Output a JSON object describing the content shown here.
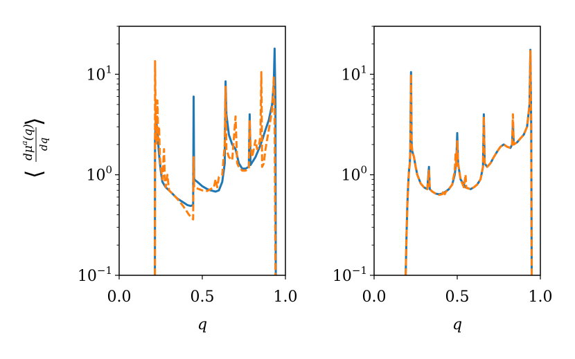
{
  "figure": {
    "ylabel_parts": {
      "mu": "dμ",
      "sup": "a",
      "arg": "(q)",
      "den": "dq"
    }
  },
  "colors": {
    "series1": "#1f77b4",
    "series2": "#ff7f0e"
  },
  "chart_data": [
    {
      "type": "line",
      "xlabel": "q",
      "ylabel": "⟨dμ^a(q)/dq⟩",
      "xlim": [
        0.0,
        1.0
      ],
      "ylim": [
        0.1,
        30
      ],
      "yscale": "log",
      "x_ticks": [
        "0.0",
        "0.5",
        "1.0"
      ],
      "y_ticks": [
        {
          "base": "10",
          "exp": "−1"
        },
        {
          "base": "10",
          "exp": "0"
        },
        {
          "base": "10",
          "exp": "1"
        }
      ],
      "series": [
        {
          "style": "solid",
          "color": "#1f77b4",
          "points": [
            [
              0.215,
              0.1
            ],
            [
              0.216,
              2.2
            ],
            [
              0.22,
              3.5
            ],
            [
              0.225,
              3.2
            ],
            [
              0.23,
              2.6
            ],
            [
              0.24,
              1.6
            ],
            [
              0.25,
              1.1
            ],
            [
              0.26,
              0.85
            ],
            [
              0.28,
              0.75
            ],
            [
              0.3,
              0.7
            ],
            [
              0.32,
              0.65
            ],
            [
              0.35,
              0.58
            ],
            [
              0.38,
              0.54
            ],
            [
              0.41,
              0.5
            ],
            [
              0.43,
              0.49
            ],
            [
              0.445,
              0.5
            ],
            [
              0.448,
              6.0
            ],
            [
              0.451,
              0.9
            ],
            [
              0.47,
              0.85
            ],
            [
              0.5,
              0.77
            ],
            [
              0.53,
              0.72
            ],
            [
              0.55,
              0.7
            ],
            [
              0.58,
              0.68
            ],
            [
              0.6,
              0.7
            ],
            [
              0.62,
              0.85
            ],
            [
              0.635,
              1.3
            ],
            [
              0.64,
              8.5
            ],
            [
              0.645,
              4.0
            ],
            [
              0.66,
              2.5
            ],
            [
              0.68,
              2.0
            ],
            [
              0.7,
              1.8
            ],
            [
              0.72,
              1.3
            ],
            [
              0.74,
              1.15
            ],
            [
              0.76,
              1.15
            ],
            [
              0.78,
              1.2
            ],
            [
              0.785,
              4.0
            ],
            [
              0.79,
              1.25
            ],
            [
              0.82,
              1.5
            ],
            [
              0.84,
              1.8
            ],
            [
              0.86,
              2.2
            ],
            [
              0.88,
              2.8
            ],
            [
              0.9,
              3.5
            ],
            [
              0.92,
              5.0
            ],
            [
              0.93,
              8.0
            ],
            [
              0.935,
              18.0
            ],
            [
              0.94,
              5.0
            ],
            [
              0.942,
              0.1
            ]
          ]
        },
        {
          "style": "dashed",
          "color": "#ff7f0e",
          "points": [
            [
              0.215,
              0.1
            ],
            [
              0.216,
              13.5
            ],
            [
              0.22,
              3.0
            ],
            [
              0.225,
              2.0
            ],
            [
              0.23,
              5.5
            ],
            [
              0.235,
              2.2
            ],
            [
              0.24,
              3.0
            ],
            [
              0.245,
              1.5
            ],
            [
              0.25,
              1.2
            ],
            [
              0.26,
              0.9
            ],
            [
              0.27,
              1.8
            ],
            [
              0.275,
              0.85
            ],
            [
              0.28,
              0.75
            ],
            [
              0.29,
              1.0
            ],
            [
              0.3,
              0.7
            ],
            [
              0.32,
              0.65
            ],
            [
              0.34,
              0.6
            ],
            [
              0.36,
              0.55
            ],
            [
              0.38,
              0.5
            ],
            [
              0.4,
              0.45
            ],
            [
              0.42,
              0.4
            ],
            [
              0.44,
              0.37
            ],
            [
              0.445,
              0.36
            ],
            [
              0.448,
              1.5
            ],
            [
              0.451,
              0.75
            ],
            [
              0.47,
              0.73
            ],
            [
              0.5,
              0.7
            ],
            [
              0.53,
              0.69
            ],
            [
              0.55,
              0.72
            ],
            [
              0.57,
              0.75
            ],
            [
              0.58,
              0.9
            ],
            [
              0.59,
              0.75
            ],
            [
              0.6,
              0.95
            ],
            [
              0.62,
              1.0
            ],
            [
              0.635,
              2.0
            ],
            [
              0.64,
              7.5
            ],
            [
              0.645,
              1.8
            ],
            [
              0.66,
              1.5
            ],
            [
              0.68,
              1.4
            ],
            [
              0.7,
              3.8
            ],
            [
              0.71,
              1.3
            ],
            [
              0.72,
              1.2
            ],
            [
              0.74,
              1.1
            ],
            [
              0.76,
              1.1
            ],
            [
              0.78,
              1.15
            ],
            [
              0.785,
              3.5
            ],
            [
              0.79,
              2.0
            ],
            [
              0.8,
              1.5
            ],
            [
              0.82,
              2.2
            ],
            [
              0.83,
              1.8
            ],
            [
              0.84,
              1.9
            ],
            [
              0.85,
              2.5
            ],
            [
              0.855,
              10.5
            ],
            [
              0.86,
              1.2
            ],
            [
              0.87,
              1.3
            ],
            [
              0.88,
              1.8
            ],
            [
              0.9,
              2.8
            ],
            [
              0.91,
              3.5
            ],
            [
              0.92,
              4.5
            ],
            [
              0.925,
              6.0
            ],
            [
              0.93,
              9.5
            ],
            [
              0.935,
              4.0
            ],
            [
              0.94,
              0.1
            ]
          ]
        }
      ]
    },
    {
      "type": "line",
      "xlabel": "q",
      "ylabel": "",
      "xlim": [
        0.0,
        1.0
      ],
      "ylim": [
        0.1,
        30
      ],
      "yscale": "log",
      "x_ticks": [
        "0.0",
        "0.5",
        "1.0"
      ],
      "y_ticks": [
        {
          "base": "10",
          "exp": "−1"
        },
        {
          "base": "10",
          "exp": "0"
        },
        {
          "base": "10",
          "exp": "1"
        }
      ],
      "series": [
        {
          "style": "solid",
          "color": "#1f77b4",
          "points": [
            [
              0.19,
              0.1
            ],
            [
              0.195,
              0.25
            ],
            [
              0.2,
              0.5
            ],
            [
              0.205,
              0.8
            ],
            [
              0.21,
              1.1
            ],
            [
              0.215,
              1.3
            ],
            [
              0.218,
              1.8
            ],
            [
              0.222,
              10.5
            ],
            [
              0.226,
              2.0
            ],
            [
              0.23,
              1.7
            ],
            [
              0.24,
              1.5
            ],
            [
              0.25,
              1.2
            ],
            [
              0.26,
              1.0
            ],
            [
              0.28,
              0.82
            ],
            [
              0.3,
              0.75
            ],
            [
              0.32,
              0.72
            ],
            [
              0.33,
              1.2
            ],
            [
              0.335,
              0.72
            ],
            [
              0.35,
              0.68
            ],
            [
              0.37,
              0.65
            ],
            [
              0.39,
              0.64
            ],
            [
              0.41,
              0.65
            ],
            [
              0.43,
              0.68
            ],
            [
              0.45,
              0.72
            ],
            [
              0.47,
              0.8
            ],
            [
              0.485,
              1.0
            ],
            [
              0.495,
              1.4
            ],
            [
              0.5,
              2.6
            ],
            [
              0.505,
              1.3
            ],
            [
              0.52,
              0.9
            ],
            [
              0.55,
              0.75
            ],
            [
              0.58,
              0.72
            ],
            [
              0.6,
              0.75
            ],
            [
              0.62,
              0.8
            ],
            [
              0.64,
              0.9
            ],
            [
              0.655,
              1.2
            ],
            [
              0.66,
              4.0
            ],
            [
              0.665,
              1.3
            ],
            [
              0.68,
              1.2
            ],
            [
              0.7,
              1.3
            ],
            [
              0.72,
              1.5
            ],
            [
              0.74,
              1.7
            ],
            [
              0.76,
              1.9
            ],
            [
              0.78,
              2.0
            ],
            [
              0.8,
              1.9
            ],
            [
              0.82,
              1.85
            ],
            [
              0.83,
              2.0
            ],
            [
              0.835,
              3.3
            ],
            [
              0.84,
              2.0
            ],
            [
              0.86,
              2.1
            ],
            [
              0.88,
              2.3
            ],
            [
              0.9,
              2.5
            ],
            [
              0.92,
              3.0
            ],
            [
              0.935,
              5.0
            ],
            [
              0.94,
              17.5
            ],
            [
              0.945,
              3.0
            ],
            [
              0.948,
              0.1
            ]
          ]
        },
        {
          "style": "dashed",
          "color": "#ff7f0e",
          "points": [
            [
              0.19,
              0.1
            ],
            [
              0.195,
              0.25
            ],
            [
              0.2,
              0.5
            ],
            [
              0.205,
              0.8
            ],
            [
              0.21,
              1.1
            ],
            [
              0.215,
              1.3
            ],
            [
              0.218,
              1.8
            ],
            [
              0.222,
              10.0
            ],
            [
              0.226,
              2.0
            ],
            [
              0.23,
              1.7
            ],
            [
              0.24,
              1.5
            ],
            [
              0.25,
              1.2
            ],
            [
              0.26,
              1.0
            ],
            [
              0.28,
              0.82
            ],
            [
              0.3,
              0.75
            ],
            [
              0.32,
              0.72
            ],
            [
              0.33,
              1.1
            ],
            [
              0.335,
              0.72
            ],
            [
              0.35,
              0.68
            ],
            [
              0.37,
              0.65
            ],
            [
              0.39,
              0.63
            ],
            [
              0.41,
              0.64
            ],
            [
              0.42,
              0.7
            ],
            [
              0.425,
              0.64
            ],
            [
              0.43,
              0.67
            ],
            [
              0.45,
              0.72
            ],
            [
              0.47,
              0.8
            ],
            [
              0.485,
              1.1
            ],
            [
              0.49,
              1.6
            ],
            [
              0.495,
              1.2
            ],
            [
              0.5,
              2.2
            ],
            [
              0.505,
              1.3
            ],
            [
              0.52,
              0.9
            ],
            [
              0.54,
              0.75
            ],
            [
              0.55,
              1.0
            ],
            [
              0.555,
              0.74
            ],
            [
              0.58,
              0.72
            ],
            [
              0.6,
              0.75
            ],
            [
              0.62,
              0.8
            ],
            [
              0.64,
              0.9
            ],
            [
              0.655,
              1.2
            ],
            [
              0.66,
              3.8
            ],
            [
              0.665,
              1.3
            ],
            [
              0.68,
              1.2
            ],
            [
              0.7,
              1.3
            ],
            [
              0.72,
              1.5
            ],
            [
              0.74,
              1.7
            ],
            [
              0.76,
              1.9
            ],
            [
              0.78,
              2.0
            ],
            [
              0.8,
              1.9
            ],
            [
              0.82,
              1.85
            ],
            [
              0.83,
              2.0
            ],
            [
              0.835,
              4.0
            ],
            [
              0.84,
              2.0
            ],
            [
              0.86,
              2.1
            ],
            [
              0.88,
              2.3
            ],
            [
              0.9,
              2.5
            ],
            [
              0.92,
              3.0
            ],
            [
              0.935,
              5.0
            ],
            [
              0.94,
              17.0
            ],
            [
              0.945,
              3.0
            ],
            [
              0.948,
              0.1
            ]
          ]
        }
      ]
    }
  ]
}
